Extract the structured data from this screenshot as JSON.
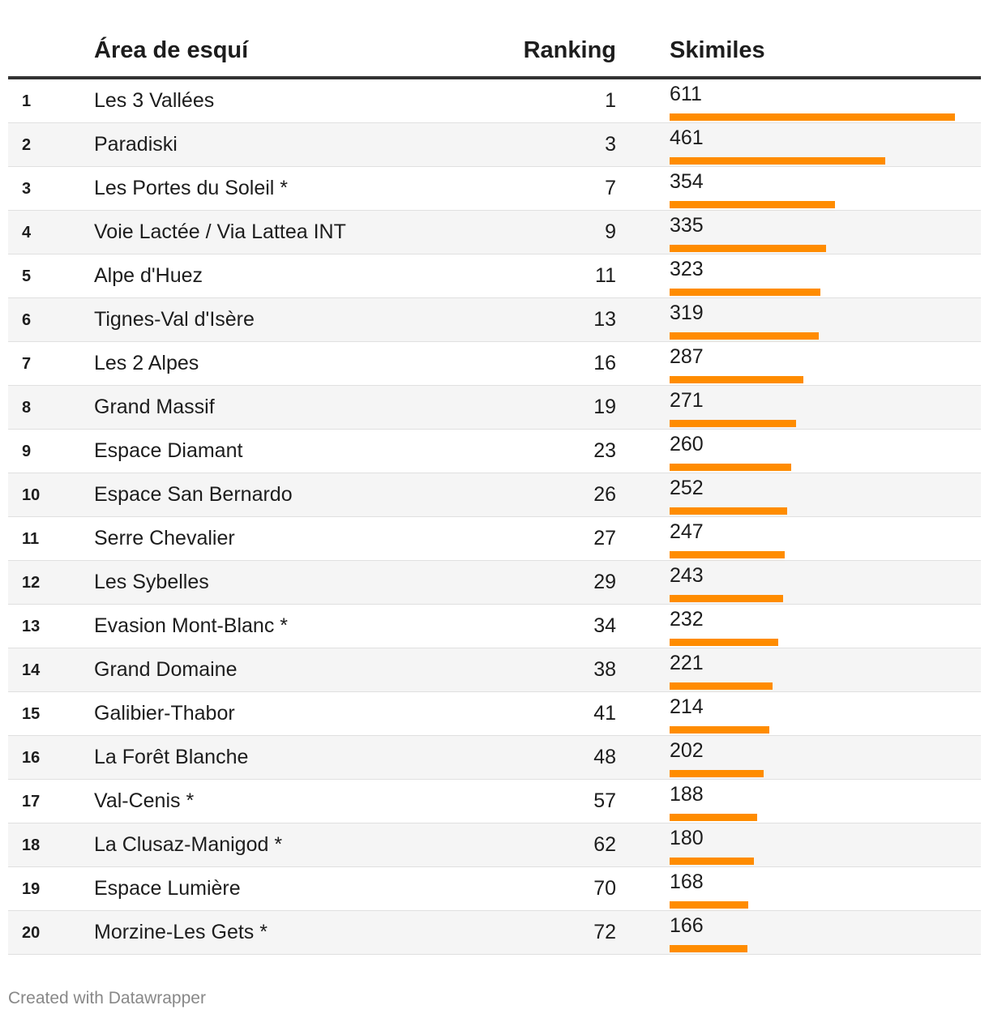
{
  "headers": {
    "area": "Área de esquí",
    "ranking": "Ranking",
    "skimiles": "Skimiles"
  },
  "colors": {
    "bar": "#ff8c00",
    "alt_row": "#f5f5f5"
  },
  "footer": "Created with Datawrapper",
  "chart_data": {
    "type": "table",
    "columns": [
      "#",
      "Área de esquí",
      "Ranking",
      "Skimiles"
    ],
    "bar_column": "Skimiles",
    "bar_max": 611,
    "rows": [
      {
        "index": "1",
        "area": "Les 3 Vallées",
        "ranking": "1",
        "skimiles": 611
      },
      {
        "index": "2",
        "area": "Paradiski",
        "ranking": "3",
        "skimiles": 461
      },
      {
        "index": "3",
        "area": "Les Portes du Soleil *",
        "ranking": "7",
        "skimiles": 354
      },
      {
        "index": "4",
        "area": "Voie Lactée / Via Lattea INT",
        "ranking": "9",
        "skimiles": 335
      },
      {
        "index": "5",
        "area": "Alpe d'Huez",
        "ranking": "11",
        "skimiles": 323
      },
      {
        "index": "6",
        "area": "Tignes-Val d'Isère",
        "ranking": "13",
        "skimiles": 319
      },
      {
        "index": "7",
        "area": "Les 2 Alpes",
        "ranking": "16",
        "skimiles": 287
      },
      {
        "index": "8",
        "area": "Grand Massif",
        "ranking": "19",
        "skimiles": 271
      },
      {
        "index": "9",
        "area": "Espace Diamant",
        "ranking": "23",
        "skimiles": 260
      },
      {
        "index": "10",
        "area": "Espace San Bernardo",
        "ranking": "26",
        "skimiles": 252
      },
      {
        "index": "11",
        "area": "Serre Chevalier",
        "ranking": "27",
        "skimiles": 247
      },
      {
        "index": "12",
        "area": "Les Sybelles",
        "ranking": "29",
        "skimiles": 243
      },
      {
        "index": "13",
        "area": "Evasion Mont-Blanc *",
        "ranking": "34",
        "skimiles": 232
      },
      {
        "index": "14",
        "area": "Grand Domaine",
        "ranking": "38",
        "skimiles": 221
      },
      {
        "index": "15",
        "area": "Galibier-Thabor",
        "ranking": "41",
        "skimiles": 214
      },
      {
        "index": "16",
        "area": "La Forêt Blanche",
        "ranking": "48",
        "skimiles": 202
      },
      {
        "index": "17",
        "area": "Val-Cenis *",
        "ranking": "57",
        "skimiles": 188
      },
      {
        "index": "18",
        "area": "La Clusaz-Manigod *",
        "ranking": "62",
        "skimiles": 180
      },
      {
        "index": "19",
        "area": "Espace Lumière",
        "ranking": "70",
        "skimiles": 168
      },
      {
        "index": "20",
        "area": "Morzine-Les Gets *",
        "ranking": "72",
        "skimiles": 166
      }
    ]
  }
}
